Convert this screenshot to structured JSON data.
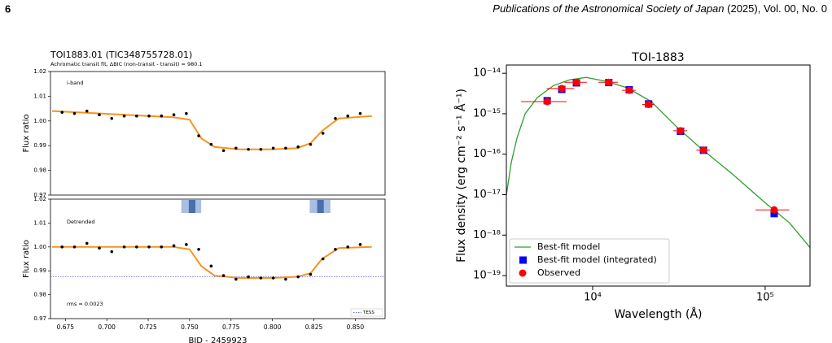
{
  "header": {
    "page_number": "6",
    "journal": "Publications of the Astronomical Society of Japan",
    "citation": "(2025), Vol. 00, No. 0"
  },
  "chart_data": [
    {
      "type": "line",
      "title": "TOI1883.01 (TIC348755728.01)",
      "subtitle": "Achromatic transit fit,  ΔBIC (non-transit - transit) = 980.1",
      "annotation": "i-band",
      "annotation_color": "#f7931e",
      "ylabel": "Flux ratio",
      "xlim": [
        0.666,
        0.868
      ],
      "ylim": [
        0.97,
        1.02
      ],
      "yticks": [
        0.97,
        0.98,
        0.99,
        {
          "value": 1,
          "label": "1.00"
        },
        1.01,
        1.02
      ],
      "points": {
        "color": "#000000",
        "x": [
          0.673,
          0.6805,
          0.688,
          0.6955,
          0.703,
          0.7105,
          0.718,
          0.7255,
          0.733,
          0.7405,
          0.748,
          0.7555,
          0.763,
          0.7705,
          0.778,
          0.7855,
          0.793,
          0.8005,
          0.808,
          0.8155,
          0.823,
          0.8305,
          0.838,
          0.8455,
          0.853
        ],
        "y": [
          1.0035,
          1.003,
          1.004,
          1.0025,
          1.001,
          1.002,
          1.002,
          1.002,
          1.002,
          1.0025,
          1.003,
          0.994,
          0.9905,
          0.988,
          0.989,
          0.9885,
          0.9885,
          0.989,
          0.989,
          0.9895,
          0.9905,
          0.995,
          1.001,
          1.002,
          1.003
        ]
      },
      "model": {
        "color": "#f7931e",
        "x": [
          0.667,
          0.74,
          0.75,
          0.757,
          0.765,
          0.78,
          0.8,
          0.815,
          0.823,
          0.83,
          0.84,
          0.86
        ],
        "y": [
          1.004,
          1.0015,
          1.0005,
          0.993,
          0.9895,
          0.9885,
          0.9885,
          0.989,
          0.991,
          0.996,
          1.001,
          1.002
        ]
      }
    },
    {
      "type": "line",
      "annotation": "Detrended",
      "note": "rms = 0.0023",
      "ylabel": "Flux ratio",
      "xlabel": "BJD - 2459923",
      "xlim": [
        0.666,
        0.868
      ],
      "ylim": [
        0.97,
        1.02
      ],
      "xticks": [
        0.675,
        {
          "value": 0.7,
          "label": "0.700"
        },
        0.725,
        {
          "value": 0.75,
          "label": "0.750"
        },
        0.775,
        {
          "value": 0.8,
          "label": "0.800"
        },
        0.825,
        {
          "value": 0.85,
          "label": "0.850"
        }
      ],
      "yticks": [
        0.97,
        0.98,
        0.99,
        {
          "value": 1,
          "label": "1.00"
        },
        1.01,
        1.02
      ],
      "spans": [
        [
          0.745,
          0.757
        ],
        [
          0.8225,
          0.835
        ]
      ],
      "span_color": "#a9bfe0",
      "span_cores": [
        [
          0.7495,
          0.7535
        ],
        [
          0.827,
          0.831
        ]
      ],
      "core_color": "#4a6fb0",
      "hline": {
        "name": "TESS",
        "value": 0.9875,
        "color": "#4040ff"
      },
      "points": {
        "color": "#000000",
        "x": [
          0.673,
          0.6805,
          0.688,
          0.6955,
          0.703,
          0.7105,
          0.718,
          0.7255,
          0.733,
          0.7405,
          0.748,
          0.7555,
          0.763,
          0.7705,
          0.778,
          0.7855,
          0.793,
          0.8005,
          0.808,
          0.8155,
          0.823,
          0.8305,
          0.838,
          0.8455,
          0.853
        ],
        "y": [
          1.0,
          1.0,
          1.0015,
          0.9995,
          0.998,
          1.0,
          1.0,
          1.0,
          1.0,
          1.0005,
          1.001,
          0.999,
          0.992,
          0.988,
          0.9865,
          0.9875,
          0.987,
          0.987,
          0.9865,
          0.9875,
          0.9885,
          0.995,
          0.999,
          1.0,
          1.001
        ]
      },
      "model": {
        "color": "#f7931e",
        "x": [
          0.667,
          0.74,
          0.75,
          0.757,
          0.765,
          0.78,
          0.8,
          0.815,
          0.823,
          0.83,
          0.84,
          0.86
        ],
        "y": [
          1.0,
          1.0,
          0.999,
          0.992,
          0.988,
          0.987,
          0.987,
          0.9875,
          0.989,
          0.995,
          0.9995,
          1.0
        ]
      }
    },
    {
      "type": "scatter",
      "title": "TOI-1883",
      "xlabel": "Wavelength (Å)",
      "ylabel": "Flux density (erg cm⁻² s⁻¹ Å⁻¹)",
      "xlog": true,
      "ylog": true,
      "legend": "lower left",
      "xlim": [
        3160,
        182000
      ],
      "ylim": [
        5.5e-20,
        1.6e-14
      ],
      "xticks": [
        {
          "value": 10000,
          "label": "10⁴"
        },
        {
          "value": 100000,
          "label": "10⁵"
        }
      ],
      "yticks": [
        {
          "value": 1e-19,
          "label": "10⁻¹⁹"
        },
        {
          "value": 1e-18,
          "label": "10⁻¹⁸"
        },
        {
          "value": 1e-17,
          "label": "10⁻¹⁷"
        },
        {
          "value": 1e-16,
          "label": "10⁻¹⁶"
        },
        {
          "value": 1e-15,
          "label": "10⁻¹⁵"
        },
        {
          "value": 1e-14,
          "label": "10⁻¹⁴"
        }
      ],
      "series": [
        {
          "name": "Best-fit model",
          "color": "#2ca02c",
          "marker": "line",
          "x": [
            3162,
            3375,
            3640,
            4060,
            4775,
            5940,
            7380,
            9160,
            12030,
            15790,
            21860,
            30300,
            42000,
            64800,
            100000,
            138600,
            181600
          ],
          "values": [
            1e-17,
            6.3e-17,
            2.5e-16,
            1e-15,
            2.5e-15,
            5e-15,
            6.9e-15,
            7.9e-15,
            6.3e-15,
            4.4e-15,
            2e-15,
            5e-16,
            1.45e-16,
            3.2e-17,
            6.3e-18,
            2e-18,
            5e-19
          ]
        },
        {
          "name": "Best-fit model (integrated)",
          "color": "#0000ff",
          "marker": "square",
          "x": [
            5450,
            6620,
            8050,
            12400,
            16300,
            21100,
            32300,
            43900,
            112800
          ],
          "values": [
            2.1e-15,
            4e-15,
            5.8e-15,
            5.9e-15,
            3.9e-15,
            1.75e-15,
            3.7e-16,
            1.25e-16,
            3.4e-18
          ]
        },
        {
          "name": "Observed",
          "color": "#ff0000",
          "marker": "circle",
          "x": [
            5450,
            6620,
            8050,
            12400,
            16300,
            21100,
            32300,
            43900,
            112800
          ],
          "xerr": [
            1600,
            1200,
            1200,
            1600,
            1500,
            1700,
            3000,
            4000,
            25000
          ],
          "values": [
            2e-15,
            4.2e-15,
            6e-15,
            6e-15,
            3.8e-15,
            1.7e-15,
            3.8e-16,
            1.26e-16,
            4.2e-18
          ]
        }
      ]
    }
  ]
}
